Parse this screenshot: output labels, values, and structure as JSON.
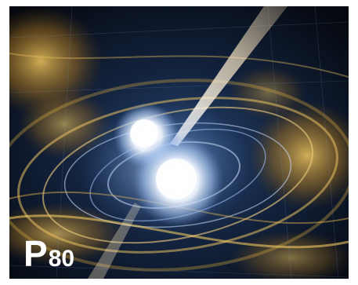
{
  "scene": {
    "subject": "neutron-star-merger-illustration",
    "colors": {
      "background": "#0a0f1a",
      "glow": "#ffffff",
      "gold": "#e0b040",
      "blue": "#5a86c8"
    }
  },
  "label": {
    "letter": "P",
    "number": "80"
  }
}
